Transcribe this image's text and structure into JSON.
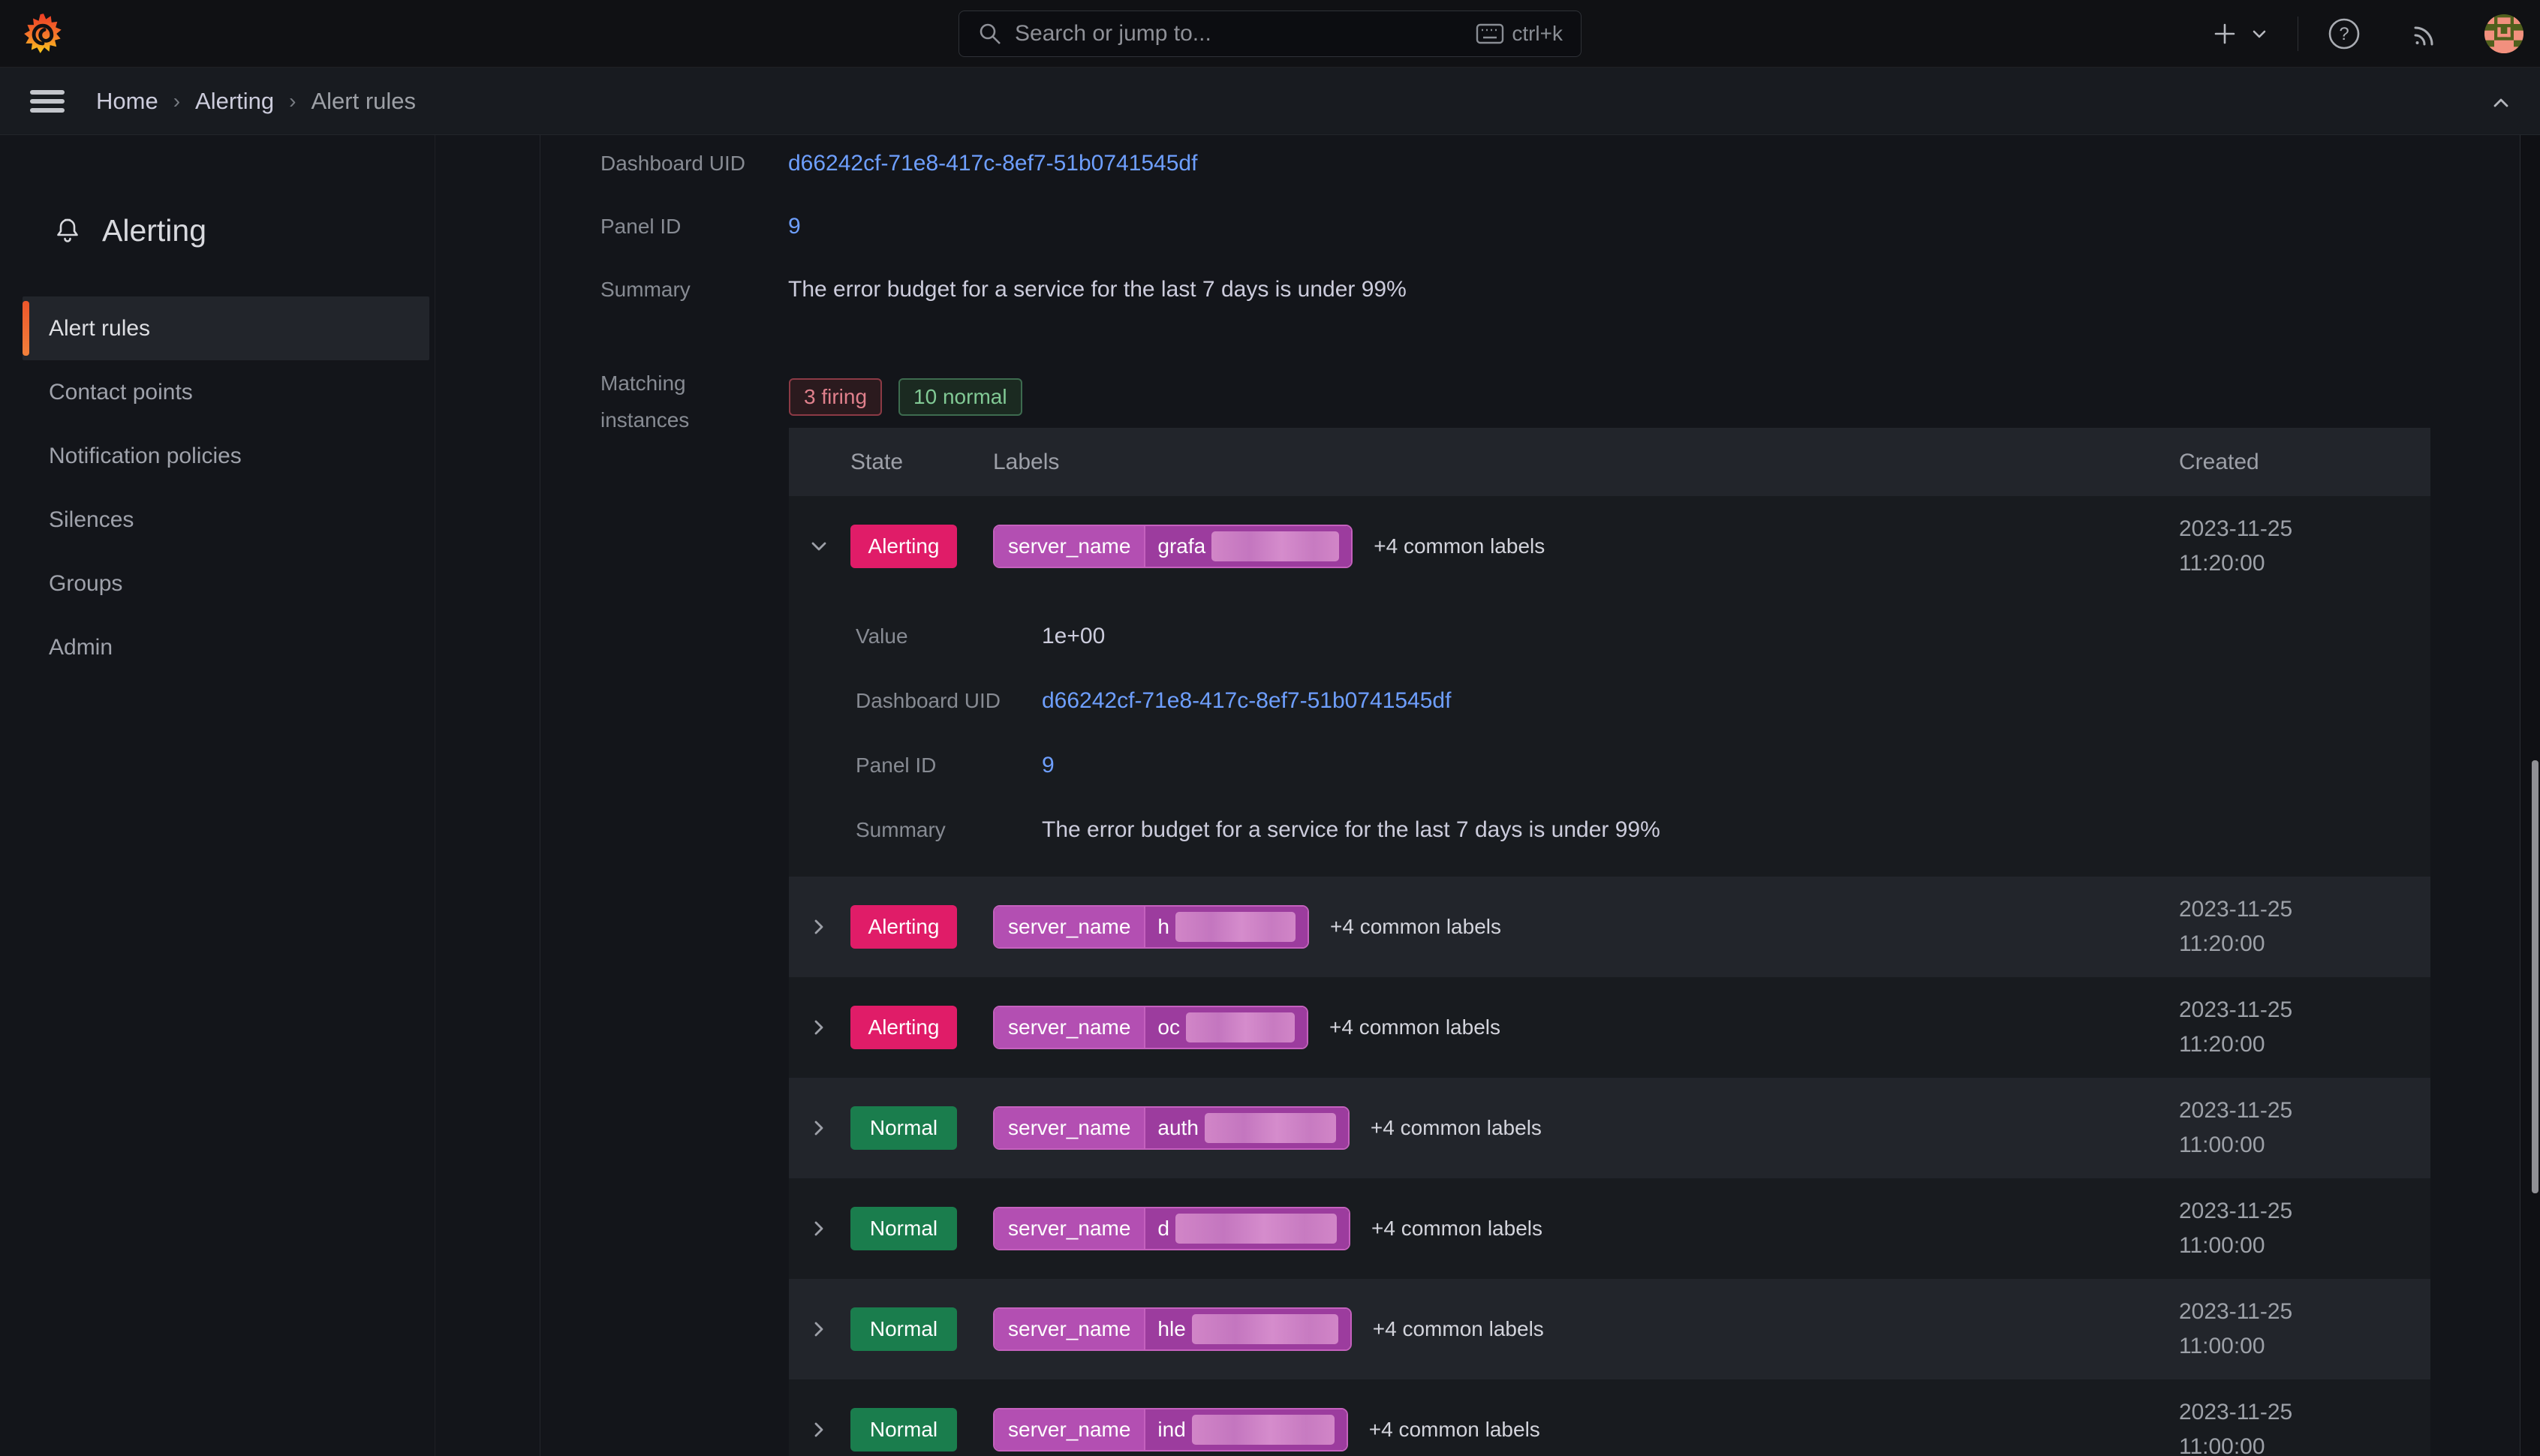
{
  "topnav": {
    "search": {
      "placeholder": "Search or jump to...",
      "shortcut": "ctrl+k"
    }
  },
  "breadcrumb": {
    "items": [
      "Home",
      "Alerting",
      "Alert rules"
    ],
    "separator": "›"
  },
  "sidebar": {
    "title": "Alerting",
    "items": [
      {
        "label": "Alert rules",
        "active": true
      },
      {
        "label": "Contact points"
      },
      {
        "label": "Notification policies"
      },
      {
        "label": "Silences"
      },
      {
        "label": "Groups"
      },
      {
        "label": "Admin"
      }
    ]
  },
  "rule_detail": {
    "fields": [
      {
        "label": "Dashboard UID",
        "value": "d66242cf-71e8-417c-8ef7-51b0741545df",
        "link": true
      },
      {
        "label": "Panel ID",
        "value": "9",
        "link": true
      },
      {
        "label": "Summary",
        "value": "The error budget for a service for the last 7 days is under 99%"
      }
    ],
    "matching_instances": {
      "label": "Matching instances",
      "badges": [
        {
          "text": "3 firing",
          "kind": "firing"
        },
        {
          "text": "10 normal",
          "kind": "normal"
        }
      ]
    }
  },
  "instances_table": {
    "columns": [
      "State",
      "Labels",
      "Created"
    ],
    "rows": [
      {
        "state": "Alerting",
        "expanded": true,
        "label_key": "server_name",
        "label_value_visible": "grafa",
        "redact_w": 170,
        "common_labels": "+4 common labels",
        "created_date": "2023-11-25",
        "created_time": "11:20:00",
        "details": [
          {
            "label": "Value",
            "value": "1e+00"
          },
          {
            "label": "Dashboard UID",
            "value": "d66242cf-71e8-417c-8ef7-51b0741545df",
            "link": true
          },
          {
            "label": "Panel ID",
            "value": "9",
            "link": true
          },
          {
            "label": "Summary",
            "value": "The error budget for a service for the last 7 days is under 99%"
          }
        ]
      },
      {
        "state": "Alerting",
        "expanded": false,
        "label_key": "server_name",
        "label_value_visible": "h",
        "redact_w": 160,
        "common_labels": "+4 common labels",
        "created_date": "2023-11-25",
        "created_time": "11:20:00"
      },
      {
        "state": "Alerting",
        "expanded": false,
        "label_key": "server_name",
        "label_value_visible": "oc",
        "redact_w": 145,
        "common_labels": "+4 common labels",
        "created_date": "2023-11-25",
        "created_time": "11:20:00"
      },
      {
        "state": "Normal",
        "expanded": false,
        "label_key": "server_name",
        "label_value_visible": "auth",
        "redact_w": 175,
        "common_labels": "+4 common labels",
        "created_date": "2023-11-25",
        "created_time": "11:00:00"
      },
      {
        "state": "Normal",
        "expanded": false,
        "label_key": "server_name",
        "label_value_visible": "d",
        "redact_w": 215,
        "common_labels": "+4 common labels",
        "created_date": "2023-11-25",
        "created_time": "11:00:00"
      },
      {
        "state": "Normal",
        "expanded": false,
        "label_key": "server_name",
        "label_value_visible": "hle",
        "redact_w": 195,
        "common_labels": "+4 common labels",
        "created_date": "2023-11-25",
        "created_time": "11:00:00"
      },
      {
        "state": "Normal",
        "expanded": false,
        "label_key": "server_name",
        "label_value_visible": "ind",
        "redact_w": 190,
        "common_labels": "+4 common labels",
        "created_date": "2023-11-25",
        "created_time": "11:00:00"
      }
    ]
  },
  "colors": {
    "alerting_badge": "#E01C68",
    "normal_badge": "#1A7D4D",
    "firing_badge_text": "#E0808C",
    "normal_badge_text": "#81C995",
    "label_pill_key_bg": "#B34FB2",
    "label_pill_value_bg": "#9C3C9E",
    "label_pill_border": "#C561BE",
    "link": "#6E9FFF",
    "sidebar_active_accent": "#ED562B"
  }
}
